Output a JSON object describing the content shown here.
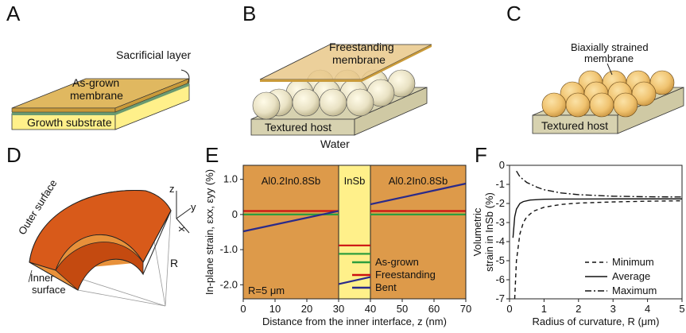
{
  "panels": {
    "A": {
      "letter": "A",
      "sacrificial_label": "Sacrificial layer",
      "membrane_label_1": "As-grown",
      "membrane_label_2": "membrane",
      "substrate_label": "Growth substrate"
    },
    "B": {
      "letter": "B",
      "membrane_label_1": "Freestanding",
      "membrane_label_2": "membrane",
      "host_label": "Textured host",
      "water_label": "Water"
    },
    "C": {
      "letter": "C",
      "membrane_label_1": "Biaxially strained",
      "membrane_label_2": "membrane",
      "host_label": "Textured host"
    },
    "D": {
      "letter": "D",
      "outer_label": "Outer surface",
      "inner_label_1": "Inner",
      "inner_label_2": "surface",
      "r_label": "R",
      "axis_z": "z",
      "axis_y": "y",
      "axis_x": "x"
    },
    "E": {
      "letter": "E",
      "region_left": "Al0.2In0.8Sb",
      "region_mid": "InSb",
      "region_right": "Al0.2In0.8Sb",
      "radius_note": "R=5 μm"
    },
    "F": {
      "letter": "F"
    }
  },
  "colors": {
    "membrane": "#e0b860",
    "substrate": "#fff08a",
    "host": "#d7d2b0",
    "orange_bg": "#dd9a4a",
    "insb_bg": "#fff08a",
    "as_grown": "#2e9e3e",
    "freestanding": "#cc1111",
    "bent": "#2a2a8a",
    "shell_outer": "#d85a1a",
    "shell_inner": "#e8913a"
  },
  "chart_data": [
    {
      "type": "line",
      "panel": "E",
      "xlabel": "Distance from the inner interface, z (nm)",
      "ylabel": "In-plane strain, εxx, εyy (%)",
      "xlim": [
        0,
        70
      ],
      "ylim": [
        -2.4,
        1.4
      ],
      "xticks": [
        "0",
        "10",
        "20",
        "30",
        "40",
        "50",
        "60",
        "70"
      ],
      "yticks": [
        "1.0",
        "0",
        "-1.0",
        "-2.0"
      ],
      "shaded_regions": [
        {
          "label": "Al0.2In0.8Sb",
          "x": [
            0,
            30
          ]
        },
        {
          "label": "InSb",
          "x": [
            30,
            40
          ]
        },
        {
          "label": "Al0.2In0.8Sb",
          "x": [
            40,
            70
          ]
        }
      ],
      "legend_position": "lower-right",
      "series": [
        {
          "name": "As-grown",
          "segments": [
            {
              "x": [
                0,
                30
              ],
              "y": [
                0.0,
                0.0
              ]
            },
            {
              "x": [
                30,
                40
              ],
              "y": [
                -1.12,
                -1.12
              ]
            },
            {
              "x": [
                40,
                70
              ],
              "y": [
                0.0,
                0.0
              ]
            }
          ]
        },
        {
          "name": "Freestanding",
          "segments": [
            {
              "x": [
                0,
                30
              ],
              "y": [
                0.1,
                0.1
              ]
            },
            {
              "x": [
                30,
                40
              ],
              "y": [
                -0.88,
                -0.88
              ]
            },
            {
              "x": [
                40,
                70
              ],
              "y": [
                0.1,
                0.1
              ]
            }
          ]
        },
        {
          "name": "Bent",
          "segments": [
            {
              "x": [
                0,
                30
              ],
              "y": [
                -0.48,
                0.1
              ]
            },
            {
              "x": [
                30,
                40
              ],
              "y": [
                -1.98,
                -1.78
              ]
            },
            {
              "x": [
                40,
                70
              ],
              "y": [
                0.29,
                0.88
              ]
            }
          ]
        }
      ]
    },
    {
      "type": "line",
      "panel": "F",
      "xlabel": "Radius of curvature, R (μm)",
      "ylabel": "Volumetric strain in InSb (%)",
      "xlim": [
        0,
        5
      ],
      "ylim": [
        -7,
        0
      ],
      "xticks": [
        "0",
        "1",
        "2",
        "3",
        "4",
        "5"
      ],
      "yticks": [
        "0",
        "-1",
        "-2",
        "-3",
        "-4",
        "-5",
        "-6",
        "-7"
      ],
      "legend_position": "lower-right",
      "series": [
        {
          "name": "Minimum",
          "dash": "dashed",
          "x": [
            0.15,
            0.2,
            0.3,
            0.4,
            0.5,
            0.7,
            1.0,
            1.5,
            2.0,
            3.0,
            4.0,
            5.0
          ],
          "y": [
            -7.0,
            -5.0,
            -3.6,
            -3.0,
            -2.7,
            -2.4,
            -2.2,
            -2.05,
            -1.98,
            -1.92,
            -1.88,
            -1.86
          ]
        },
        {
          "name": "Average",
          "dash": "solid",
          "x": [
            0.1,
            0.15,
            0.2,
            0.3,
            0.4,
            0.6,
            1.0,
            1.5,
            2.0,
            3.0,
            4.0,
            5.0
          ],
          "y": [
            -3.8,
            -2.7,
            -2.3,
            -2.0,
            -1.9,
            -1.82,
            -1.78,
            -1.77,
            -1.77,
            -1.76,
            -1.76,
            -1.76
          ]
        },
        {
          "name": "Maximum",
          "dash": "dashdot",
          "x": [
            0.2,
            0.3,
            0.5,
            0.8,
            1.0,
            1.5,
            2.0,
            3.0,
            4.0,
            5.0
          ],
          "y": [
            -0.3,
            -0.6,
            -0.9,
            -1.15,
            -1.28,
            -1.45,
            -1.54,
            -1.62,
            -1.65,
            -1.66
          ]
        }
      ]
    }
  ]
}
